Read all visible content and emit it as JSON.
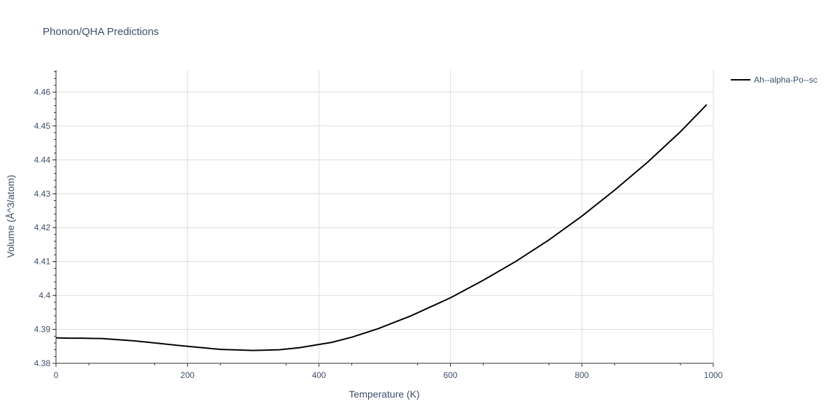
{
  "chart_data": {
    "type": "line",
    "title": "Phonon/QHA Predictions",
    "xlabel": "Temperature (K)",
    "ylabel": "Volume (Å^3/atom)",
    "xlim": [
      0,
      1000
    ],
    "ylim": [
      4.38,
      4.4665
    ],
    "x_ticks": [
      0,
      200,
      400,
      600,
      800,
      1000
    ],
    "x_tick_labels": [
      "0",
      "200",
      "400",
      "600",
      "800",
      "1000"
    ],
    "y_ticks": [
      4.38,
      4.39,
      4.4,
      4.41,
      4.42,
      4.43,
      4.44,
      4.45,
      4.46
    ],
    "y_tick_labels": [
      "4.38",
      "4.39",
      "4.4",
      "4.41",
      "4.42",
      "4.43",
      "4.44",
      "4.45",
      "4.46"
    ],
    "grid": true,
    "legend_position": "top-right",
    "series": [
      {
        "name": "Ah--alpha-Po--sc",
        "color": "#000000",
        "x": [
          0,
          20,
          40,
          70,
          120,
          160,
          200,
          250,
          300,
          340,
          370,
          420,
          450,
          490,
          540,
          600,
          650,
          700,
          750,
          800,
          850,
          900,
          950,
          990
        ],
        "y": [
          4.3875,
          4.3874,
          4.3874,
          4.3873,
          4.3866,
          4.3858,
          4.385,
          4.3841,
          4.3838,
          4.384,
          4.3846,
          4.3862,
          4.3877,
          4.3902,
          4.394,
          4.3993,
          4.4045,
          4.4101,
          4.4164,
          4.4234,
          4.4311,
          4.4393,
          4.4483,
          4.4563
        ]
      }
    ]
  }
}
